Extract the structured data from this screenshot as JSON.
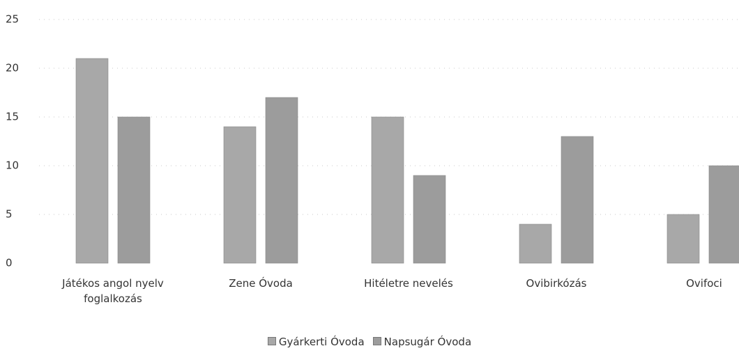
{
  "chart_data": {
    "type": "bar",
    "categories": [
      "Játékos angol nyelv foglalkozás",
      "Zene Óvoda",
      "Hitéletre nevelés",
      "Ovibirkózás",
      "Ovifoci"
    ],
    "series": [
      {
        "name": "Gyárkerti Óvoda",
        "color": "#a8a8a8",
        "values": [
          21,
          14,
          15,
          4,
          5
        ]
      },
      {
        "name": "Napsugár Óvoda",
        "color": "#9c9c9c",
        "values": [
          15,
          17,
          9,
          13,
          10
        ]
      }
    ],
    "ylim": [
      0,
      25
    ],
    "yticks": [
      0,
      5,
      10,
      15,
      20,
      25
    ],
    "grid": true,
    "legend": "bottom"
  }
}
